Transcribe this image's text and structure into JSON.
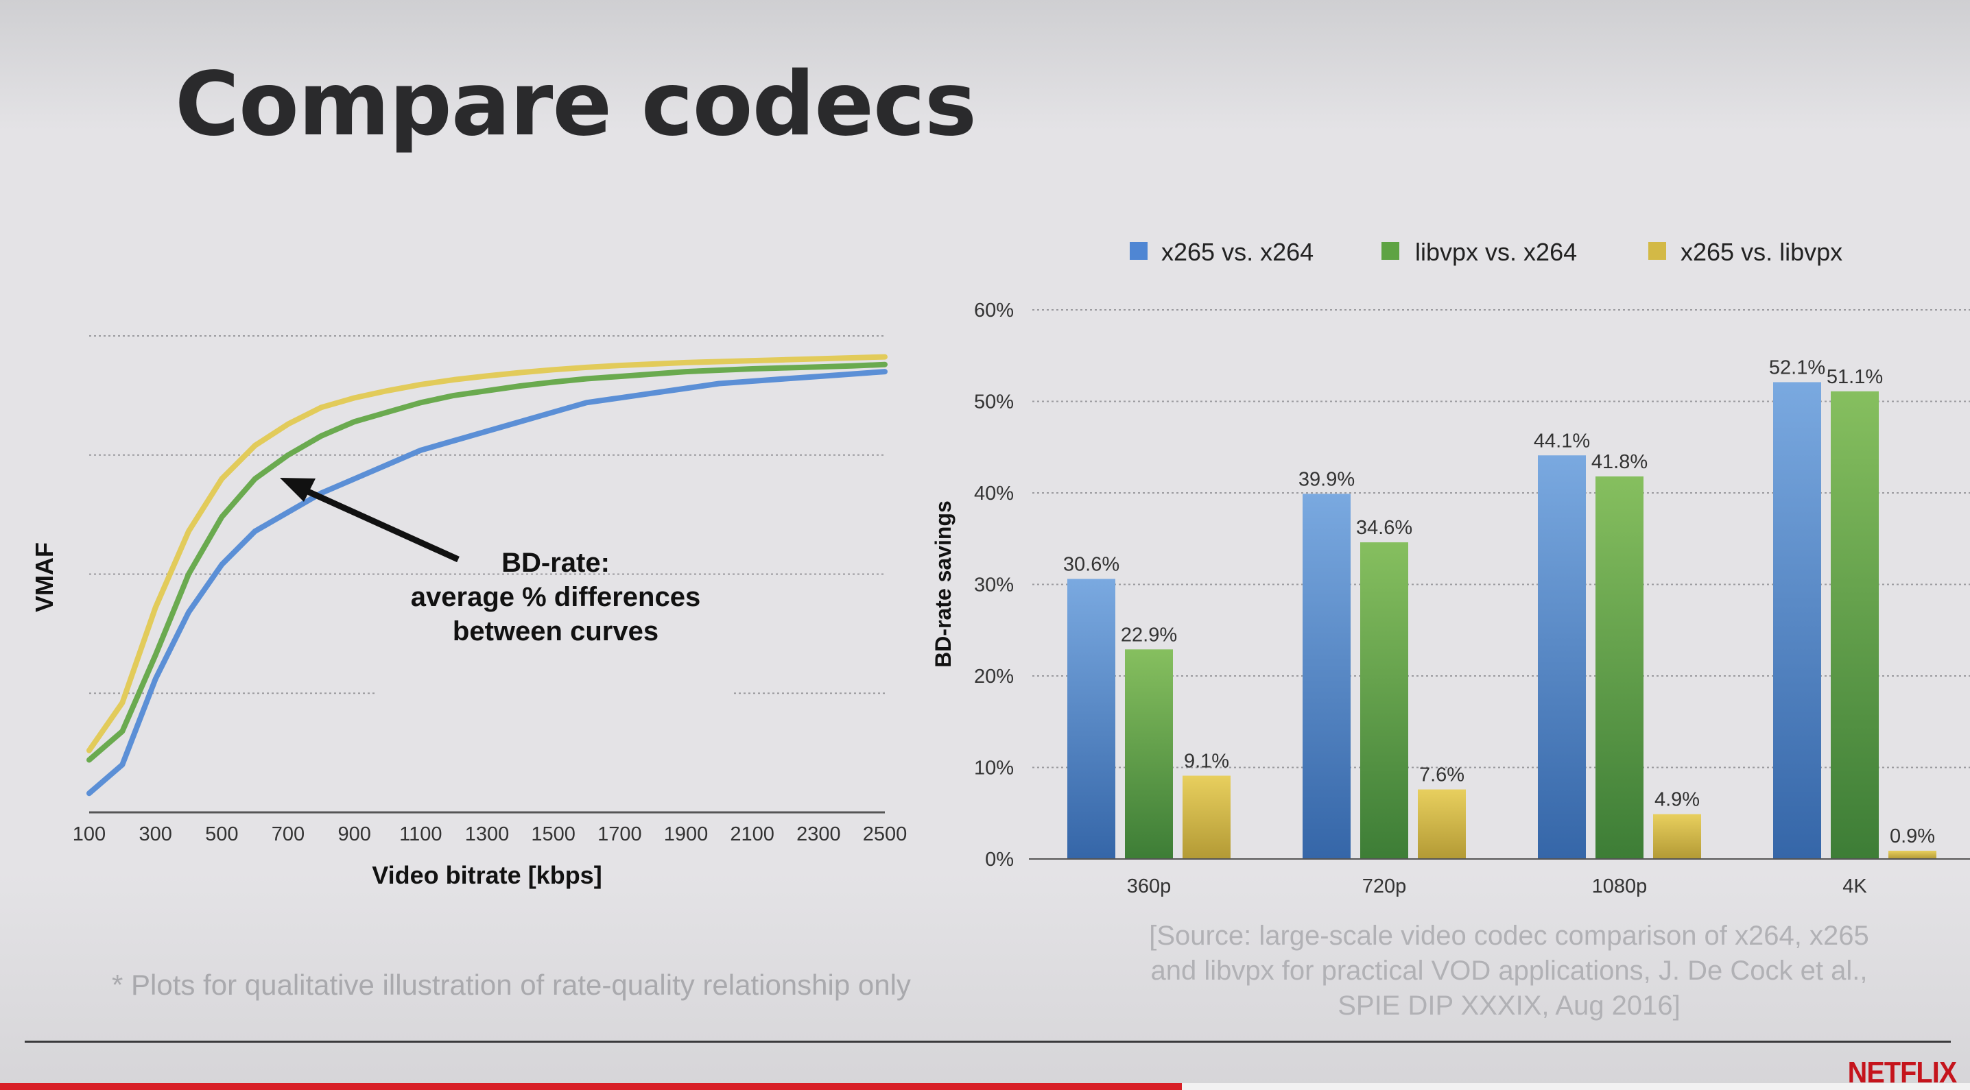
{
  "slide": {
    "title": "Compare codecs",
    "annotation": {
      "line1": "BD-rate:",
      "line2": "average % differences",
      "line3": "between curves"
    },
    "footnote": "* Plots for qualitative illustration of rate-quality relationship only",
    "source": {
      "line1": "[Source:  large-scale video codec comparison of x264, x265",
      "line2": "and libvpx for practical VOD applications, J. De Cock et al.,",
      "line3": "SPIE DIP XXXIX, Aug 2016]"
    },
    "logo": "NETFLIX",
    "video_progress": 0.6
  },
  "chart_data": [
    {
      "type": "line",
      "title": "",
      "xlabel": "Video bitrate [kbps]",
      "ylabel": "VMAF",
      "x": [
        100,
        200,
        300,
        400,
        500,
        600,
        700,
        800,
        900,
        1000,
        1100,
        1200,
        1300,
        1400,
        1500,
        1600,
        1700,
        1800,
        1900,
        2000,
        2100,
        2200,
        2300,
        2400,
        2500
      ],
      "xticks": [
        100,
        300,
        500,
        700,
        900,
        1100,
        1300,
        1500,
        1700,
        1900,
        2100,
        2300,
        2500
      ],
      "xlim": [
        100,
        2500
      ],
      "ylim": [
        0,
        100
      ],
      "grid_levels": [
        25,
        50,
        75,
        100
      ],
      "yticks_visible": false,
      "series": [
        {
          "color": "#5b8fd6",
          "values": [
            4,
            10,
            28,
            42,
            52,
            59,
            63,
            67,
            70,
            73,
            76,
            78,
            80,
            82,
            84,
            86,
            87,
            88,
            89,
            90,
            90.5,
            91,
            91.5,
            92,
            92.5
          ]
        },
        {
          "color": "#6aaa4f",
          "values": [
            11,
            17,
            33,
            50,
            62,
            70,
            75,
            79,
            82,
            84,
            86,
            87.5,
            88.5,
            89.5,
            90.3,
            91,
            91.5,
            92,
            92.5,
            92.8,
            93.1,
            93.3,
            93.5,
            93.7,
            94
          ]
        },
        {
          "color": "#e2cb5a",
          "values": [
            13,
            23,
            43,
            59,
            70,
            77,
            81.5,
            85,
            87,
            88.5,
            89.8,
            90.8,
            91.6,
            92.3,
            92.9,
            93.4,
            93.8,
            94.1,
            94.4,
            94.6,
            94.8,
            95,
            95.2,
            95.4,
            95.6
          ]
        }
      ]
    },
    {
      "type": "bar",
      "title": "",
      "xlabel": "",
      "ylabel": "BD-rate savings",
      "categories": [
        "360p",
        "720p",
        "1080p",
        "4K"
      ],
      "ylim": [
        0,
        60
      ],
      "yticks": [
        "0%",
        "10%",
        "20%",
        "30%",
        "40%",
        "50%",
        "60%"
      ],
      "grid": true,
      "legend_position": "top",
      "series": [
        {
          "name": "x265 vs. x264",
          "color_top": "#7aa9e0",
          "color_bottom": "#3566a8",
          "values": [
            30.6,
            39.9,
            44.1,
            52.1
          ],
          "labels": [
            "30.6%",
            "39.9%",
            "44.1%",
            "52.1%"
          ]
        },
        {
          "name": "libvpx vs. x264",
          "color_top": "#86bf5f",
          "color_bottom": "#3d7d36",
          "values": [
            22.9,
            34.6,
            41.8,
            51.1
          ],
          "labels": [
            "22.9%",
            "34.6%",
            "41.8%",
            "51.1%"
          ]
        },
        {
          "name": "x265 vs. libvpx",
          "color_top": "#e8cf5e",
          "color_bottom": "#b39a35",
          "values": [
            9.1,
            7.6,
            4.9,
            0.9
          ],
          "labels": [
            "9.1%",
            "7.6%",
            "4.9%",
            "0.9%"
          ]
        }
      ]
    }
  ]
}
